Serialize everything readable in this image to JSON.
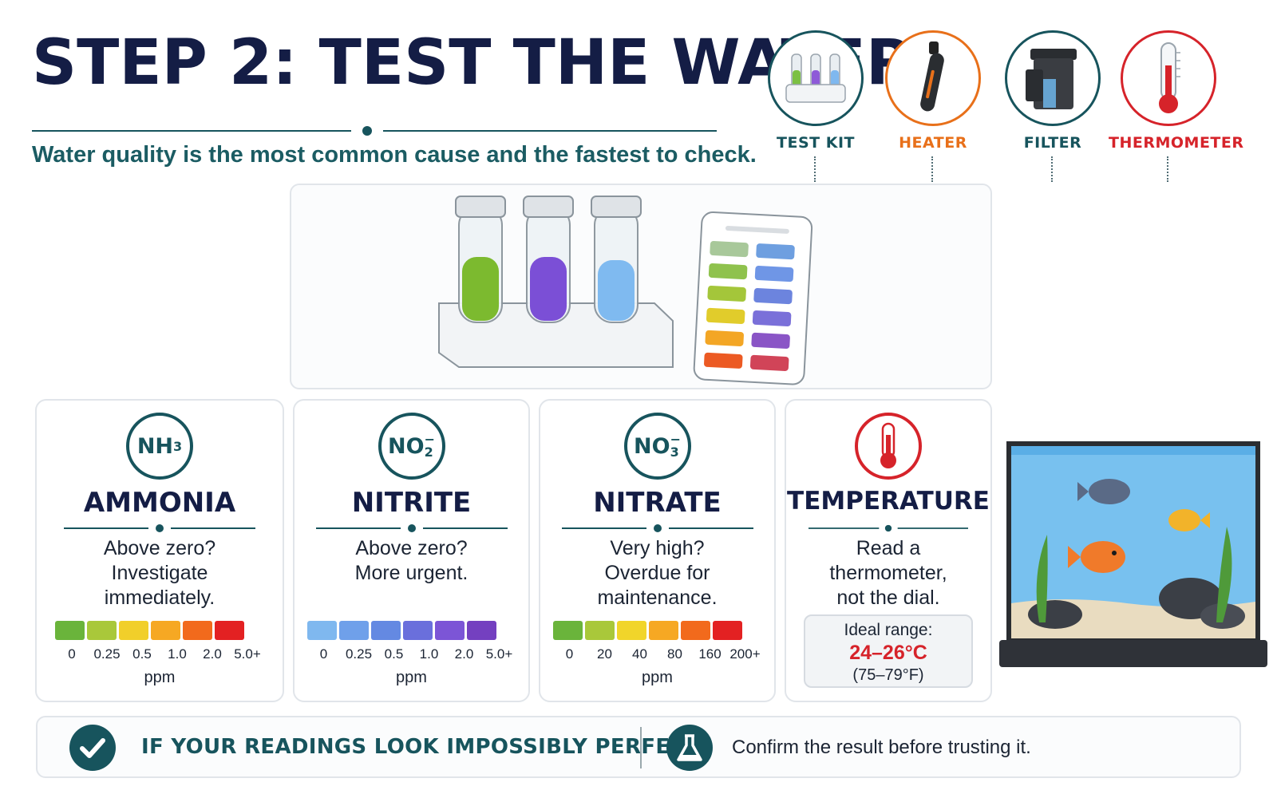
{
  "header": {
    "title": "STEP 2: TEST THE WATER",
    "subtitle": "Water quality is the most common cause and the fastest to check."
  },
  "equipment": [
    {
      "label": "TEST KIT",
      "icon": "test-kit-icon",
      "color": "#17545d"
    },
    {
      "label": "HEATER",
      "icon": "heater-icon",
      "color": "#e8701a"
    },
    {
      "label": "FILTER",
      "icon": "filter-icon",
      "color": "#17545d"
    },
    {
      "label": "THERMOMETER",
      "icon": "thermometer-icon",
      "color": "#d6232a"
    }
  ],
  "hero": {
    "icon": "test-tubes-and-color-card-illustration"
  },
  "cards": [
    {
      "formula": "NH",
      "formula_sub": "3",
      "formula_sup": "",
      "name": "AMMONIA",
      "line1": "Above zero?",
      "line2": "Investigate",
      "line3": "immediately.",
      "scale_colors": [
        "#6ab43b",
        "#a9c83a",
        "#f1cf2a",
        "#f6a823",
        "#f26a1c",
        "#e32122"
      ],
      "ticks": [
        "0",
        "0.25",
        "0.5",
        "1.0",
        "2.0",
        "5.0+"
      ],
      "unit": "ppm"
    },
    {
      "formula": "NO",
      "formula_sub": "2",
      "formula_sup": "−",
      "name": "NITRITE",
      "line1": "Above zero?",
      "line2": "More urgent.",
      "line3": "",
      "scale_colors": [
        "#7fb8ef",
        "#6fa0ea",
        "#6489e2",
        "#6a6fdc",
        "#7c55d6",
        "#7440c0"
      ],
      "ticks": [
        "0",
        "0.25",
        "0.5",
        "1.0",
        "2.0",
        "5.0+"
      ],
      "unit": "ppm"
    },
    {
      "formula": "NO",
      "formula_sub": "3",
      "formula_sup": "−",
      "name": "NITRATE",
      "line1": "Very high?",
      "line2": "Overdue for",
      "line3": "maintenance.",
      "scale_colors": [
        "#6ab43b",
        "#a9c83a",
        "#f1d52a",
        "#f6a823",
        "#f26a1c",
        "#e32122"
      ],
      "ticks": [
        "0",
        "20",
        "40",
        "80",
        "160",
        "200+"
      ],
      "unit": "ppm"
    }
  ],
  "temperature": {
    "name": "TEMPERATURE",
    "icon": "thermometer-icon",
    "line1": "Read a",
    "line2": "thermometer,",
    "line3": "not the dial.",
    "ideal_label": "Ideal range:",
    "ideal_c": "24–26°C",
    "ideal_f": "(75–79°F)"
  },
  "aquarium": {
    "icon": "aquarium-fish-tank-illustration"
  },
  "banner": {
    "check_icon": "checkmark-icon",
    "warning": "IF YOUR READINGS LOOK IMPOSSIBLY PERFECT",
    "flask_icon": "flask-icon",
    "tip": "Confirm the result before trusting it."
  },
  "colors": {
    "navy": "#141d45",
    "teal": "#17545d",
    "orange": "#e8701a",
    "red": "#d6232a"
  }
}
